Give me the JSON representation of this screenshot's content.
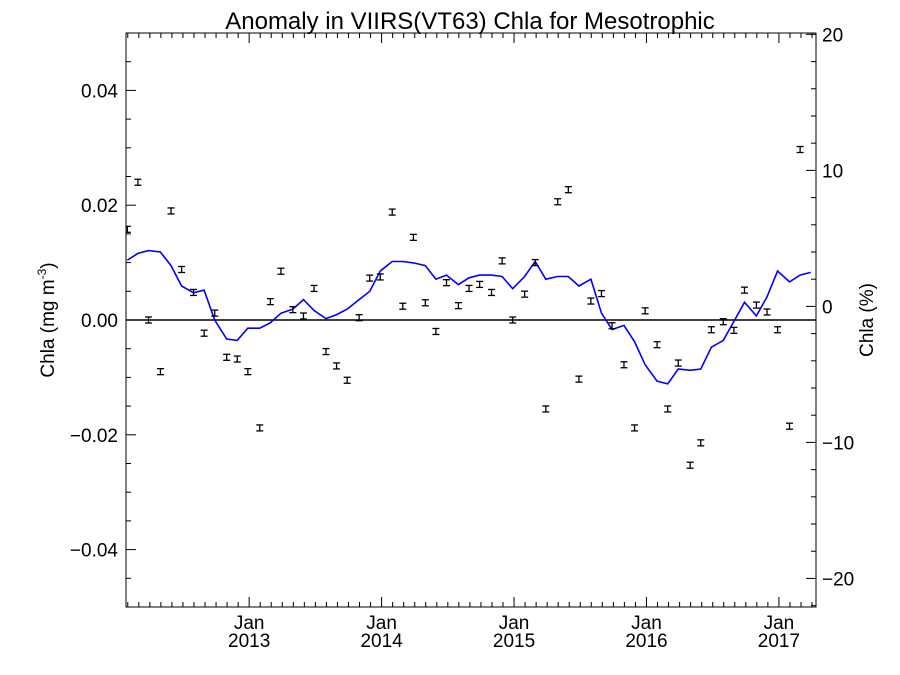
{
  "chart_data": {
    "type": "scatter",
    "title": "Anomaly in VIIRS(VT63) Chla for Mesotrophic",
    "ylabel_left": "Chla (mg m",
    "ylabel_left_sup": "-3",
    "ylabel_left_close": ")",
    "ylabel_right": "Chla (%)",
    "ylim_left": [
      -0.05,
      0.05
    ],
    "ylim_right": [
      -22.1,
      20.1
    ],
    "xlim": [
      2012.07,
      2017.28
    ],
    "left_ticks": [
      {
        "v": 0.04,
        "label": "0.04"
      },
      {
        "v": 0.02,
        "label": "0.02"
      },
      {
        "v": 0.0,
        "label": "0.00"
      },
      {
        "v": -0.02,
        "label": "−0.02"
      },
      {
        "v": -0.04,
        "label": "−0.04"
      }
    ],
    "right_ticks": [
      {
        "v": 20,
        "label": "20"
      },
      {
        "v": 10,
        "label": "10"
      },
      {
        "v": 0,
        "label": "0"
      },
      {
        "v": -10,
        "label": "−10"
      },
      {
        "v": -20,
        "label": "−20"
      }
    ],
    "x_ticks": [
      {
        "v": 2013.0,
        "month": "Jan",
        "year": "2013"
      },
      {
        "v": 2014.0,
        "month": "Jan",
        "year": "2014"
      },
      {
        "v": 2015.0,
        "month": "Jan",
        "year": "2015"
      },
      {
        "v": 2016.0,
        "month": "Jan",
        "year": "2016"
      },
      {
        "v": 2017.0,
        "month": "Jan",
        "year": "2017"
      }
    ],
    "zero_line": 0,
    "series": [
      {
        "kind": "points-with-errorbars",
        "axis": "left",
        "color": "#000000",
        "points": [
          {
            "x": 2012.08,
            "y": 0.0158
          },
          {
            "x": 2012.16,
            "y": 0.024
          },
          {
            "x": 2012.24,
            "y": 0.0
          },
          {
            "x": 2012.33,
            "y": -0.009
          },
          {
            "x": 2012.41,
            "y": 0.019
          },
          {
            "x": 2012.49,
            "y": 0.0088
          },
          {
            "x": 2012.58,
            "y": 0.0048
          },
          {
            "x": 2012.66,
            "y": -0.0023
          },
          {
            "x": 2012.74,
            "y": 0.0012
          },
          {
            "x": 2012.83,
            "y": -0.0065
          },
          {
            "x": 2012.91,
            "y": -0.0068
          },
          {
            "x": 2012.99,
            "y": -0.009
          },
          {
            "x": 2013.08,
            "y": -0.0188
          },
          {
            "x": 2013.16,
            "y": 0.0032
          },
          {
            "x": 2013.24,
            "y": 0.0085
          },
          {
            "x": 2013.33,
            "y": 0.0018
          },
          {
            "x": 2013.41,
            "y": 0.0007
          },
          {
            "x": 2013.49,
            "y": 0.0055
          },
          {
            "x": 2013.58,
            "y": -0.0055
          },
          {
            "x": 2013.66,
            "y": -0.008
          },
          {
            "x": 2013.74,
            "y": -0.0105
          },
          {
            "x": 2013.83,
            "y": 0.0004
          },
          {
            "x": 2013.91,
            "y": 0.0073
          },
          {
            "x": 2013.99,
            "y": 0.0075
          },
          {
            "x": 2014.08,
            "y": 0.0188
          },
          {
            "x": 2014.16,
            "y": 0.0024
          },
          {
            "x": 2014.24,
            "y": 0.0144
          },
          {
            "x": 2014.33,
            "y": 0.003
          },
          {
            "x": 2014.41,
            "y": -0.002
          },
          {
            "x": 2014.49,
            "y": 0.0065
          },
          {
            "x": 2014.58,
            "y": 0.0025
          },
          {
            "x": 2014.66,
            "y": 0.0055
          },
          {
            "x": 2014.74,
            "y": 0.0062
          },
          {
            "x": 2014.83,
            "y": 0.0048
          },
          {
            "x": 2014.91,
            "y": 0.0103
          },
          {
            "x": 2014.99,
            "y": 0.0
          },
          {
            "x": 2015.08,
            "y": 0.0045
          },
          {
            "x": 2015.16,
            "y": 0.01
          },
          {
            "x": 2015.24,
            "y": -0.0155
          },
          {
            "x": 2015.33,
            "y": 0.0206
          },
          {
            "x": 2015.41,
            "y": 0.0227
          },
          {
            "x": 2015.49,
            "y": -0.0103
          },
          {
            "x": 2015.58,
            "y": 0.0033
          },
          {
            "x": 2015.66,
            "y": 0.0046
          },
          {
            "x": 2015.74,
            "y": -0.001
          },
          {
            "x": 2015.83,
            "y": -0.0078
          },
          {
            "x": 2015.91,
            "y": -0.0188
          },
          {
            "x": 2015.99,
            "y": 0.0016
          },
          {
            "x": 2016.08,
            "y": -0.0043
          },
          {
            "x": 2016.16,
            "y": -0.0155
          },
          {
            "x": 2016.24,
            "y": -0.0075
          },
          {
            "x": 2016.33,
            "y": -0.0253
          },
          {
            "x": 2016.41,
            "y": -0.0214
          },
          {
            "x": 2016.49,
            "y": -0.0017
          },
          {
            "x": 2016.58,
            "y": -0.0003
          },
          {
            "x": 2016.66,
            "y": -0.0018
          },
          {
            "x": 2016.74,
            "y": 0.0052
          },
          {
            "x": 2016.83,
            "y": 0.0026
          },
          {
            "x": 2016.91,
            "y": 0.0014
          },
          {
            "x": 2016.99,
            "y": -0.0017
          },
          {
            "x": 2017.08,
            "y": -0.0185
          },
          {
            "x": 2017.16,
            "y": 0.0297
          }
        ]
      },
      {
        "kind": "line",
        "axis": "right",
        "color": "#0000ff",
        "x": [
          2012.08,
          2012.16,
          2012.24,
          2012.33,
          2012.41,
          2012.49,
          2012.58,
          2012.66,
          2012.74,
          2012.83,
          2012.91,
          2012.99,
          2013.08,
          2013.16,
          2013.24,
          2013.33,
          2013.41,
          2013.49,
          2013.58,
          2013.66,
          2013.74,
          2013.83,
          2013.91,
          2013.99,
          2014.08,
          2014.16,
          2014.24,
          2014.33,
          2014.41,
          2014.49,
          2014.58,
          2014.66,
          2014.74,
          2014.83,
          2014.91,
          2014.99,
          2015.08,
          2015.16,
          2015.24,
          2015.33,
          2015.41,
          2015.49,
          2015.58,
          2015.66,
          2015.74,
          2015.83,
          2015.91,
          2015.99,
          2016.08,
          2016.16,
          2016.24,
          2016.33,
          2016.41,
          2016.49,
          2016.58,
          2016.66,
          2016.74,
          2016.83,
          2016.91,
          2016.99,
          2017.08,
          2017.16,
          2017.24
        ],
        "y": [
          3.4,
          3.9,
          4.1,
          4.0,
          3.0,
          1.5,
          1.0,
          1.2,
          -1.0,
          -2.4,
          -2.5,
          -1.6,
          -1.6,
          -1.2,
          -0.5,
          -0.2,
          0.5,
          -0.3,
          -0.9,
          -0.6,
          -0.2,
          0.5,
          1.1,
          2.6,
          3.3,
          3.3,
          3.2,
          3.0,
          2.0,
          2.3,
          1.6,
          2.1,
          2.3,
          2.3,
          2.2,
          1.3,
          2.2,
          3.3,
          2.0,
          2.2,
          2.2,
          1.5,
          2.0,
          -0.5,
          -1.7,
          -1.4,
          -2.6,
          -4.3,
          -5.5,
          -5.7,
          -4.6,
          -4.7,
          -4.6,
          -3.0,
          -2.5,
          -1.1,
          0.3,
          -0.7,
          0.7,
          2.6,
          1.8,
          2.3,
          2.5
        ]
      }
    ]
  }
}
